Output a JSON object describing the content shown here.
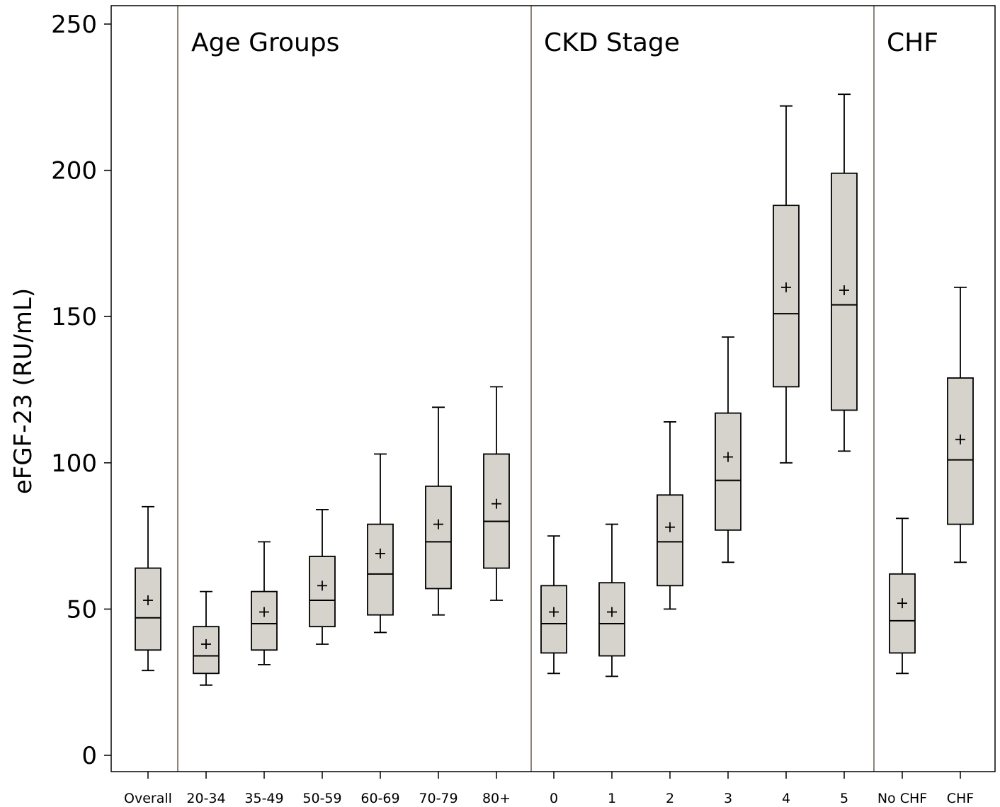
{
  "chart_data": {
    "type": "box",
    "ylabel": "eFGF-23 (RU/mL)",
    "ylim": [
      0,
      250
    ],
    "y_ticks": [
      "0",
      "50",
      "100",
      "150",
      "200",
      "250"
    ],
    "y_tick_values": [
      0,
      50,
      100,
      150,
      200,
      250
    ],
    "grid": false,
    "panels": [
      {
        "label": "",
        "categories": [
          "Overall"
        ]
      },
      {
        "label": "Age Groups",
        "categories": [
          "20-34",
          "35-49",
          "50-59",
          "60-69",
          "70-79",
          "80+"
        ]
      },
      {
        "label": "CKD Stage",
        "categories": [
          "0",
          "1",
          "2",
          "3",
          "4",
          "5"
        ]
      },
      {
        "label": "CHF",
        "categories": [
          "No CHF",
          "CHF"
        ]
      }
    ],
    "boxes": [
      {
        "category": "Overall",
        "whisker_low": 29,
        "q1": 36,
        "median": 47,
        "q3": 64,
        "whisker_high": 85,
        "mean": 53
      },
      {
        "category": "20-34",
        "whisker_low": 24,
        "q1": 28,
        "median": 34,
        "q3": 44,
        "whisker_high": 56,
        "mean": 38
      },
      {
        "category": "35-49",
        "whisker_low": 31,
        "q1": 36,
        "median": 45,
        "q3": 56,
        "whisker_high": 73,
        "mean": 49
      },
      {
        "category": "50-59",
        "whisker_low": 38,
        "q1": 44,
        "median": 53,
        "q3": 68,
        "whisker_high": 84,
        "mean": 58
      },
      {
        "category": "60-69",
        "whisker_low": 42,
        "q1": 48,
        "median": 62,
        "q3": 79,
        "whisker_high": 103,
        "mean": 69
      },
      {
        "category": "70-79",
        "whisker_low": 48,
        "q1": 57,
        "median": 73,
        "q3": 92,
        "whisker_high": 119,
        "mean": 79
      },
      {
        "category": "80+",
        "whisker_low": 53,
        "q1": 64,
        "median": 80,
        "q3": 103,
        "whisker_high": 126,
        "mean": 86
      },
      {
        "category": "0",
        "whisker_low": 28,
        "q1": 35,
        "median": 45,
        "q3": 58,
        "whisker_high": 75,
        "mean": 49
      },
      {
        "category": "1",
        "whisker_low": 27,
        "q1": 34,
        "median": 45,
        "q3": 59,
        "whisker_high": 79,
        "mean": 49
      },
      {
        "category": "2",
        "whisker_low": 50,
        "q1": 58,
        "median": 73,
        "q3": 89,
        "whisker_high": 114,
        "mean": 78
      },
      {
        "category": "3",
        "whisker_low": 66,
        "q1": 77,
        "median": 94,
        "q3": 117,
        "whisker_high": 143,
        "mean": 102
      },
      {
        "category": "4",
        "whisker_low": 100,
        "q1": 126,
        "median": 151,
        "q3": 188,
        "whisker_high": 222,
        "mean": 160
      },
      {
        "category": "5",
        "whisker_low": 104,
        "q1": 118,
        "median": 154,
        "q3": 199,
        "whisker_high": 226,
        "mean": 159
      },
      {
        "category": "No CHF",
        "whisker_low": 28,
        "q1": 35,
        "median": 46,
        "q3": 62,
        "whisker_high": 81,
        "mean": 52
      },
      {
        "category": "CHF",
        "whisker_low": 66,
        "q1": 79,
        "median": 101,
        "q3": 129,
        "whisker_high": 160,
        "mean": 108
      }
    ],
    "colors": {
      "box_fill": "#d6d3cd",
      "stroke": "#000000",
      "panel_divider": "#8c8478"
    }
  }
}
